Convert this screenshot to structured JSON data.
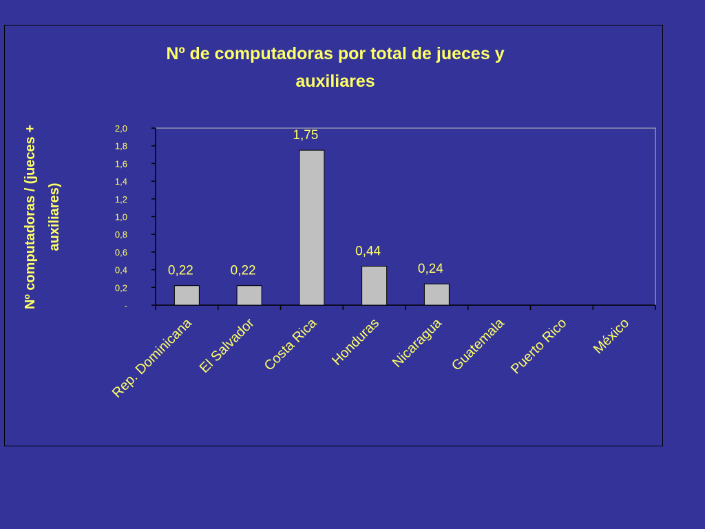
{
  "colors": {
    "background": "#333399",
    "text": "#ffff66",
    "bar_fill": "#c0c0c0",
    "axis": "#000000"
  },
  "chart_data": {
    "type": "bar",
    "title_lines": [
      "Nº de computadoras por total de jueces y",
      "auxiliares"
    ],
    "ylabel_lines": [
      "Nº computadoras / (jueces +",
      "auxiliares)"
    ],
    "xlabel": "",
    "categories": [
      "Rep. Dominicana",
      "El Salvador",
      "Costa Rica",
      "Honduras",
      "Nicaragua",
      "Guatemala",
      "Puerto Rico",
      "México"
    ],
    "values": [
      0.22,
      0.22,
      1.75,
      0.44,
      0.24,
      null,
      null,
      null
    ],
    "data_labels": [
      "0,22",
      "0,22",
      "1,75",
      "0,44",
      "0,24",
      "",
      "",
      ""
    ],
    "ylim": [
      0,
      2.0
    ],
    "yticks": [
      0,
      0.2,
      0.4,
      0.6,
      0.8,
      1.0,
      1.2,
      1.4,
      1.6,
      1.8,
      2.0
    ],
    "ytick_labels": [
      "-",
      "0,2",
      "0,4",
      "0,6",
      "0,8",
      "1,0",
      "1,2",
      "1,4",
      "1,6",
      "1,8",
      "2,0"
    ],
    "legend": "none",
    "grid": false
  }
}
